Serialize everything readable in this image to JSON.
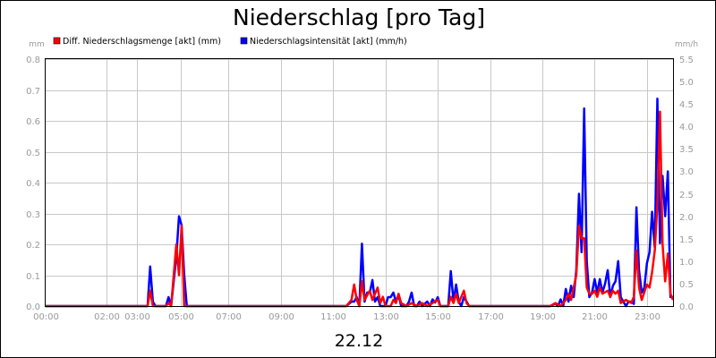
{
  "chart_data": {
    "type": "line",
    "title": "Niederschlag [pro Tag]",
    "date_label": "22.12",
    "ylabel_left": "mm",
    "ylabel_right": "mm/h",
    "ylim_left": [
      0,
      0.8
    ],
    "ylim_right": [
      0,
      5.5
    ],
    "yticks_left": [
      "0.0",
      "0.1",
      "0.2",
      "0.3",
      "0.4",
      "0.5",
      "0.6",
      "0.7",
      "0.8"
    ],
    "yticks_right": [
      "0.0",
      "0.5",
      "1.0",
      "1.5",
      "2.0",
      "2.5",
      "3.0",
      "3.5",
      "4.0",
      "4.5",
      "5.0",
      "5.5"
    ],
    "xlim": [
      0,
      24
    ],
    "xticks": [
      {
        "x": 0,
        "label": "00:00"
      },
      {
        "x": 2.33,
        "label": "02:00"
      },
      {
        "x": 3.5,
        "label": "03:00"
      },
      {
        "x": 5.17,
        "label": "05:00"
      },
      {
        "x": 7.0,
        "label": "07:00"
      },
      {
        "x": 9.0,
        "label": "09:00"
      },
      {
        "x": 11.0,
        "label": "11:00"
      },
      {
        "x": 13.0,
        "label": "13:00"
      },
      {
        "x": 15.0,
        "label": "15:00"
      },
      {
        "x": 17.0,
        "label": "17:00"
      },
      {
        "x": 19.0,
        "label": "19:00"
      },
      {
        "x": 21.0,
        "label": "21:00"
      },
      {
        "x": 23.0,
        "label": "23:00"
      }
    ],
    "grid": true,
    "legend_position": "top-left",
    "series": [
      {
        "name": "Diff. Niederschlagsmenge [akt] (mm)",
        "color": "#ff0000",
        "axis": "left",
        "points": [
          [
            0,
            0
          ],
          [
            3.9,
            0
          ],
          [
            4.0,
            0.05
          ],
          [
            4.1,
            0
          ],
          [
            4.6,
            0
          ],
          [
            4.7,
            0.01
          ],
          [
            4.8,
            0
          ],
          [
            5.0,
            0.2
          ],
          [
            5.1,
            0.1
          ],
          [
            5.2,
            0.26
          ],
          [
            5.3,
            0
          ],
          [
            11.5,
            0
          ],
          [
            11.7,
            0.02
          ],
          [
            11.8,
            0.07
          ],
          [
            11.9,
            0.02
          ],
          [
            12.0,
            0
          ],
          [
            12.1,
            0.08
          ],
          [
            12.2,
            0.02
          ],
          [
            12.4,
            0.05
          ],
          [
            12.5,
            0.02
          ],
          [
            12.7,
            0.06
          ],
          [
            12.8,
            0.01
          ],
          [
            12.9,
            0.03
          ],
          [
            13.0,
            0
          ],
          [
            13.2,
            0
          ],
          [
            13.3,
            0.02
          ],
          [
            13.4,
            0.01
          ],
          [
            13.5,
            0.04
          ],
          [
            13.6,
            0.01
          ],
          [
            13.8,
            0
          ],
          [
            14.0,
            0.01
          ],
          [
            14.2,
            0
          ],
          [
            14.4,
            0.01
          ],
          [
            14.6,
            0
          ],
          [
            14.8,
            0.01
          ],
          [
            15.0,
            0.02
          ],
          [
            15.1,
            0
          ],
          [
            15.4,
            0
          ],
          [
            15.5,
            0.03
          ],
          [
            15.6,
            0.01
          ],
          [
            15.7,
            0.04
          ],
          [
            15.8,
            0.01
          ],
          [
            16.0,
            0.05
          ],
          [
            16.1,
            0.01
          ],
          [
            16.2,
            0
          ],
          [
            19.3,
            0
          ],
          [
            19.5,
            0.01
          ],
          [
            19.7,
            0
          ],
          [
            19.9,
            0.02
          ],
          [
            20.0,
            0.04
          ],
          [
            20.1,
            0.02
          ],
          [
            20.3,
            0.1
          ],
          [
            20.4,
            0.26
          ],
          [
            20.5,
            0.22
          ],
          [
            20.6,
            0.22
          ],
          [
            20.7,
            0.06
          ],
          [
            20.8,
            0.04
          ],
          [
            20.9,
            0.04
          ],
          [
            21.0,
            0.05
          ],
          [
            21.1,
            0.03
          ],
          [
            21.2,
            0.06
          ],
          [
            21.3,
            0.04
          ],
          [
            21.5,
            0.05
          ],
          [
            21.6,
            0.03
          ],
          [
            21.7,
            0.05
          ],
          [
            21.8,
            0.04
          ],
          [
            21.9,
            0.05
          ],
          [
            22.0,
            0.01
          ],
          [
            22.2,
            0.02
          ],
          [
            22.4,
            0.01
          ],
          [
            22.5,
            0.03
          ],
          [
            22.6,
            0.18
          ],
          [
            22.7,
            0.06
          ],
          [
            22.8,
            0.02
          ],
          [
            23.0,
            0.07
          ],
          [
            23.1,
            0.06
          ],
          [
            23.2,
            0.11
          ],
          [
            23.3,
            0.18
          ],
          [
            23.4,
            0.33
          ],
          [
            23.5,
            0.63
          ],
          [
            23.6,
            0.2
          ],
          [
            23.7,
            0.08
          ],
          [
            23.8,
            0.17
          ],
          [
            23.9,
            0.04
          ],
          [
            24.0,
            0.02
          ]
        ]
      },
      {
        "name": "Niederschlagsintensität [akt] (mm/h)",
        "color": "#0000ff",
        "axis": "right",
        "points": [
          [
            0,
            0
          ],
          [
            3.9,
            0
          ],
          [
            4.0,
            0.88
          ],
          [
            4.1,
            0.1
          ],
          [
            4.2,
            0
          ],
          [
            4.6,
            0
          ],
          [
            4.7,
            0.2
          ],
          [
            4.8,
            0
          ],
          [
            5.0,
            1.1
          ],
          [
            5.1,
            2.0
          ],
          [
            5.2,
            1.8
          ],
          [
            5.3,
            0.7
          ],
          [
            5.4,
            0
          ],
          [
            11.5,
            0
          ],
          [
            11.7,
            0.1
          ],
          [
            11.8,
            0.1
          ],
          [
            11.9,
            0.2
          ],
          [
            12.0,
            0
          ],
          [
            12.1,
            1.39
          ],
          [
            12.2,
            0.1
          ],
          [
            12.3,
            0.3
          ],
          [
            12.4,
            0.3
          ],
          [
            12.5,
            0.58
          ],
          [
            12.6,
            0.1
          ],
          [
            12.7,
            0.2
          ],
          [
            12.8,
            0
          ],
          [
            13.0,
            0
          ],
          [
            13.1,
            0.2
          ],
          [
            13.2,
            0.2
          ],
          [
            13.3,
            0.3
          ],
          [
            13.4,
            0.1
          ],
          [
            13.5,
            0.25
          ],
          [
            13.6,
            0
          ],
          [
            13.8,
            0
          ],
          [
            13.9,
            0.1
          ],
          [
            14.0,
            0.3
          ],
          [
            14.1,
            0
          ],
          [
            14.2,
            0
          ],
          [
            14.3,
            0.1
          ],
          [
            14.4,
            0
          ],
          [
            14.6,
            0.1
          ],
          [
            14.7,
            0
          ],
          [
            14.8,
            0.15
          ],
          [
            14.9,
            0.08
          ],
          [
            15.0,
            0.2
          ],
          [
            15.1,
            0
          ],
          [
            15.4,
            0
          ],
          [
            15.5,
            0.78
          ],
          [
            15.6,
            0.1
          ],
          [
            15.7,
            0.48
          ],
          [
            15.8,
            0.1
          ],
          [
            15.9,
            0
          ],
          [
            16.0,
            0.2
          ],
          [
            16.1,
            0.1
          ],
          [
            16.2,
            0
          ],
          [
            19.3,
            0
          ],
          [
            19.5,
            0.05
          ],
          [
            19.6,
            0
          ],
          [
            19.7,
            0.15
          ],
          [
            19.8,
            0
          ],
          [
            19.9,
            0.38
          ],
          [
            20.0,
            0.1
          ],
          [
            20.1,
            0.45
          ],
          [
            20.2,
            0.2
          ],
          [
            20.3,
            0.8
          ],
          [
            20.4,
            2.5
          ],
          [
            20.5,
            1.2
          ],
          [
            20.6,
            4.4
          ],
          [
            20.7,
            1.0
          ],
          [
            20.8,
            0.2
          ],
          [
            20.9,
            0.3
          ],
          [
            21.0,
            0.6
          ],
          [
            21.1,
            0.3
          ],
          [
            21.2,
            0.6
          ],
          [
            21.3,
            0.3
          ],
          [
            21.4,
            0.5
          ],
          [
            21.5,
            0.8
          ],
          [
            21.6,
            0.2
          ],
          [
            21.7,
            0.45
          ],
          [
            21.8,
            0.55
          ],
          [
            21.9,
            1.0
          ],
          [
            22.0,
            0.2
          ],
          [
            22.2,
            0
          ],
          [
            22.3,
            0.1
          ],
          [
            22.4,
            0.1
          ],
          [
            22.5,
            0.05
          ],
          [
            22.6,
            2.2
          ],
          [
            22.7,
            0.8
          ],
          [
            22.8,
            0.3
          ],
          [
            22.9,
            0.4
          ],
          [
            23.0,
            0.95
          ],
          [
            23.1,
            1.2
          ],
          [
            23.2,
            2.1
          ],
          [
            23.3,
            1.3
          ],
          [
            23.4,
            4.62
          ],
          [
            23.5,
            1.4
          ],
          [
            23.6,
            2.9
          ],
          [
            23.7,
            2.0
          ],
          [
            23.8,
            3.0
          ],
          [
            23.9,
            0.2
          ],
          [
            24.0,
            0.2
          ]
        ]
      }
    ]
  }
}
